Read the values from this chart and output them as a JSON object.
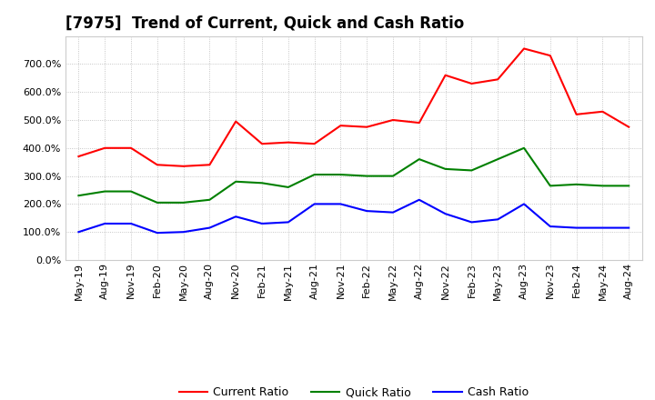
{
  "title": "[7975]  Trend of Current, Quick and Cash Ratio",
  "labels": [
    "May-19",
    "Aug-19",
    "Nov-19",
    "Feb-20",
    "May-20",
    "Aug-20",
    "Nov-20",
    "Feb-21",
    "May-21",
    "Aug-21",
    "Nov-21",
    "Feb-22",
    "May-22",
    "Aug-22",
    "Nov-22",
    "Feb-23",
    "May-23",
    "Aug-23",
    "Nov-23",
    "Feb-24",
    "May-24",
    "Aug-24"
  ],
  "current_ratio": [
    370,
    400,
    400,
    340,
    335,
    340,
    495,
    415,
    420,
    415,
    480,
    475,
    500,
    490,
    660,
    630,
    645,
    755,
    730,
    520,
    530,
    475
  ],
  "quick_ratio": [
    230,
    245,
    245,
    205,
    205,
    215,
    280,
    275,
    260,
    305,
    305,
    300,
    300,
    360,
    325,
    320,
    360,
    400,
    265,
    270,
    265,
    265
  ],
  "cash_ratio": [
    100,
    130,
    130,
    97,
    100,
    115,
    155,
    130,
    135,
    200,
    200,
    175,
    170,
    215,
    165,
    135,
    145,
    200,
    120,
    115,
    115,
    115
  ],
  "current_color": "#FF0000",
  "quick_color": "#008000",
  "cash_color": "#0000FF",
  "background_color": "#FFFFFF",
  "grid_color": "#999999",
  "ylim": [
    0,
    800
  ],
  "yticks": [
    0,
    100,
    200,
    300,
    400,
    500,
    600,
    700
  ],
  "legend_labels": [
    "Current Ratio",
    "Quick Ratio",
    "Cash Ratio"
  ],
  "title_fontsize": 12,
  "tick_fontsize": 8,
  "legend_fontsize": 9
}
